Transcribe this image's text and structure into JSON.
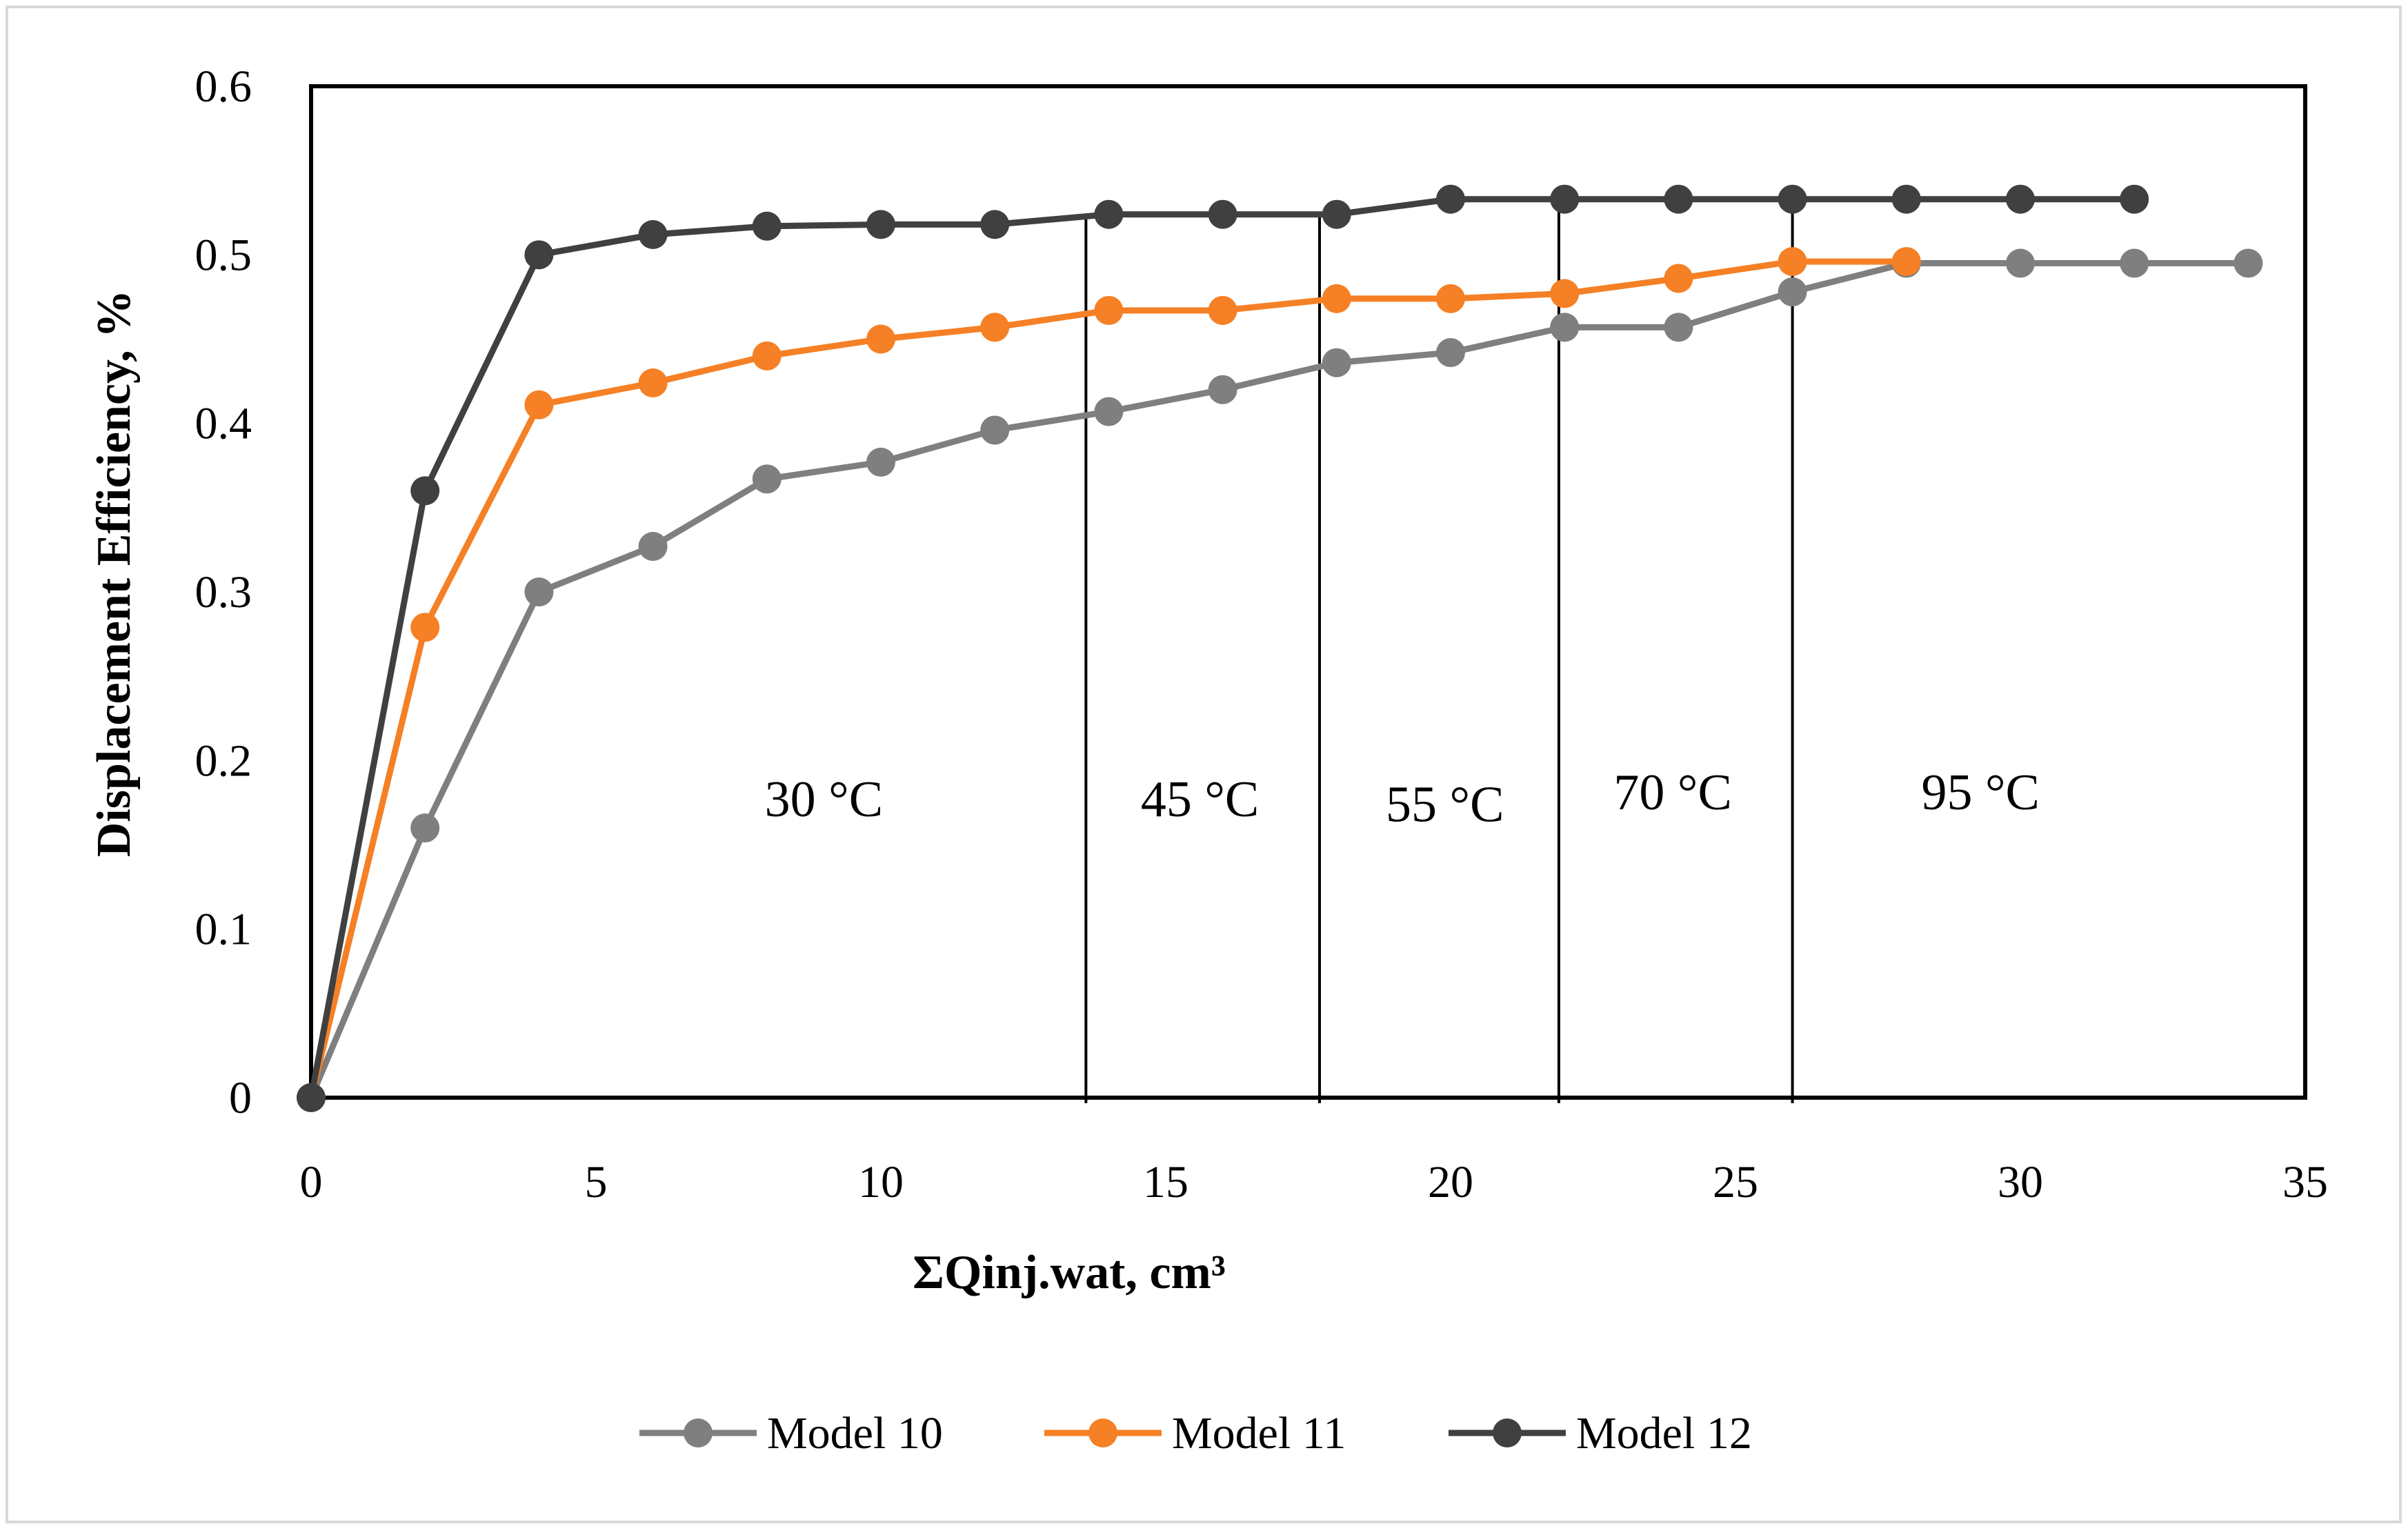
{
  "chart_data": {
    "type": "line",
    "title": "",
    "xlabel": "ΣQinj.wat, cm³",
    "ylabel": "Displacement Efficiency, %",
    "xlim": [
      0,
      35
    ],
    "ylim": [
      0,
      0.6
    ],
    "xticks": [
      0,
      5,
      10,
      15,
      20,
      25,
      30,
      35
    ],
    "xtick_labels": [
      "0",
      "5",
      "10",
      "15",
      "20",
      "25",
      "30",
      "35"
    ],
    "yticks": [
      0,
      0.1,
      0.2,
      0.3,
      0.4,
      0.5,
      0.6
    ],
    "ytick_labels": [
      "0",
      "0.1",
      "0.2",
      "0.3",
      "0.4",
      "0.5",
      "0.6"
    ],
    "grid": false,
    "legend_position": "bottom",
    "series": [
      {
        "name": "Model 10",
        "color": "#7f7f7f",
        "x": [
          0,
          2,
          4,
          6,
          8,
          10,
          12,
          14,
          16,
          18,
          20,
          22,
          24,
          26,
          28,
          30,
          32,
          34
        ],
        "y": [
          0,
          0.16,
          0.3,
          0.327,
          0.367,
          0.377,
          0.396,
          0.407,
          0.42,
          0.436,
          0.442,
          0.457,
          0.457,
          0.478,
          0.495,
          0.495,
          0.495,
          0.495
        ]
      },
      {
        "name": "Model 11",
        "color": "#f58025",
        "x": [
          0,
          2,
          4,
          6,
          8,
          10,
          12,
          14,
          16,
          18,
          20,
          22,
          24,
          26,
          28
        ],
        "y": [
          0,
          0.279,
          0.411,
          0.424,
          0.44,
          0.45,
          0.457,
          0.467,
          0.467,
          0.474,
          0.474,
          0.477,
          0.486,
          0.496,
          0.496
        ]
      },
      {
        "name": "Model 12",
        "color": "#404040",
        "x": [
          0,
          2,
          4,
          6,
          8,
          10,
          12,
          14,
          16,
          18,
          20,
          22,
          24,
          26,
          28,
          30,
          32
        ],
        "y": [
          0,
          0.36,
          0.5,
          0.512,
          0.517,
          0.518,
          0.518,
          0.524,
          0.524,
          0.524,
          0.533,
          0.533,
          0.533,
          0.533,
          0.533,
          0.533,
          0.533
        ]
      }
    ],
    "dividers": [
      {
        "x": 13.6,
        "y_top": 0.524
      },
      {
        "x": 17.7,
        "y_top": 0.524
      },
      {
        "x": 21.9,
        "y_top": 0.533
      },
      {
        "x": 26.0,
        "y_top": 0.533
      }
    ],
    "annotations": [
      {
        "text": "30 °C",
        "x": 9,
        "y": 0.167
      },
      {
        "text": "45 °C",
        "x": 15.6,
        "y": 0.167
      },
      {
        "text": "55 °C",
        "x": 19.9,
        "y": 0.164
      },
      {
        "text": "70 °C",
        "x": 23.9,
        "y": 0.171
      },
      {
        "text": "95 °C",
        "x": 29.3,
        "y": 0.171
      }
    ]
  }
}
